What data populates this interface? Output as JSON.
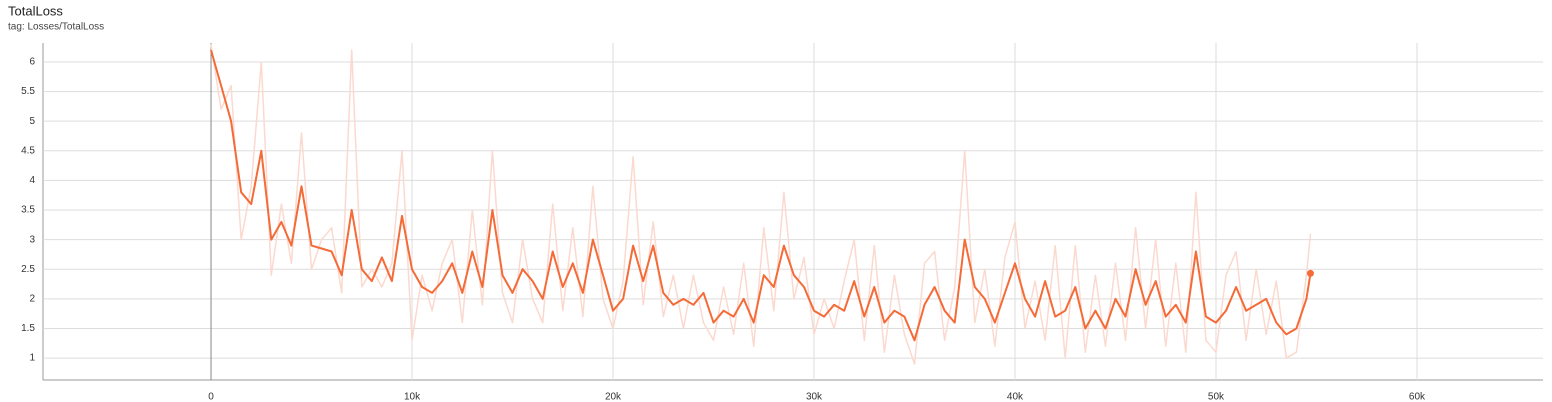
{
  "chart_data": {
    "type": "line",
    "title": "TotalLoss",
    "subtitle": "tag: Losses/TotalLoss",
    "x": [
      0,
      500,
      1000,
      1500,
      2000,
      2500,
      3000,
      3500,
      4000,
      4500,
      5000,
      5500,
      6000,
      6500,
      7000,
      7500,
      8000,
      8500,
      9000,
      9500,
      10000,
      10500,
      11000,
      11500,
      12000,
      12500,
      13000,
      13500,
      14000,
      14500,
      15000,
      15500,
      16000,
      16500,
      17000,
      17500,
      18000,
      18500,
      19000,
      19500,
      20000,
      20500,
      21000,
      21500,
      22000,
      22500,
      23000,
      23500,
      24000,
      24500,
      25000,
      25500,
      26000,
      26500,
      27000,
      27500,
      28000,
      28500,
      29000,
      29500,
      30000,
      30500,
      31000,
      31500,
      32000,
      32500,
      33000,
      33500,
      34000,
      34500,
      35000,
      35500,
      36000,
      36500,
      37000,
      37500,
      38000,
      38500,
      39000,
      39500,
      40000,
      40500,
      41000,
      41500,
      42000,
      42500,
      43000,
      43500,
      44000,
      44500,
      45000,
      45500,
      46000,
      46500,
      47000,
      47500,
      48000,
      48500,
      49000,
      49500,
      50000,
      50500,
      51000,
      51500,
      52000,
      52500,
      53000,
      53500,
      54000,
      54500,
      54700
    ],
    "series": [
      {
        "color": "#fbd9cf",
        "width": 1.5,
        "values": [
          6.3,
          5.2,
          5.6,
          3.0,
          3.9,
          6.0,
          2.4,
          3.6,
          2.6,
          4.8,
          2.5,
          3.0,
          3.2,
          2.1,
          6.2,
          2.2,
          2.5,
          2.2,
          2.6,
          4.5,
          1.3,
          2.4,
          1.8,
          2.6,
          3.0,
          1.6,
          3.5,
          1.9,
          4.5,
          2.1,
          1.6,
          3.0,
          2.0,
          1.6,
          3.6,
          1.8,
          3.2,
          1.7,
          3.9,
          2.0,
          1.5,
          2.3,
          4.4,
          1.9,
          3.3,
          1.7,
          2.4,
          1.5,
          2.4,
          1.6,
          1.3,
          2.2,
          1.4,
          2.6,
          1.2,
          3.2,
          1.8,
          3.8,
          2.0,
          2.7,
          1.4,
          2.0,
          1.5,
          2.3,
          3.0,
          1.3,
          2.9,
          1.1,
          2.4,
          1.4,
          0.9,
          2.6,
          2.8,
          1.3,
          2.2,
          4.5,
          1.6,
          2.5,
          1.2,
          2.7,
          3.3,
          1.5,
          2.3,
          1.3,
          2.9,
          1.0,
          2.9,
          1.1,
          2.4,
          1.2,
          2.6,
          1.3,
          3.2,
          1.5,
          3.0,
          1.2,
          2.6,
          1.1,
          3.8,
          1.3,
          1.1,
          2.4,
          2.8,
          1.3,
          2.5,
          1.4,
          2.3,
          1.0,
          1.1,
          2.4,
          3.1
        ]
      },
      {
        "color": "#f46b38",
        "width": 2,
        "values": [
          6.2,
          5.6,
          5.0,
          3.8,
          3.6,
          4.5,
          3.0,
          3.3,
          2.9,
          3.9,
          2.9,
          2.85,
          2.8,
          2.4,
          3.5,
          2.5,
          2.3,
          2.7,
          2.3,
          3.4,
          2.5,
          2.2,
          2.1,
          2.3,
          2.6,
          2.1,
          2.8,
          2.2,
          3.5,
          2.4,
          2.1,
          2.5,
          2.3,
          2.0,
          2.8,
          2.2,
          2.6,
          2.1,
          3.0,
          2.4,
          1.8,
          2.0,
          2.9,
          2.3,
          2.9,
          2.1,
          1.9,
          2.0,
          1.9,
          2.1,
          1.6,
          1.8,
          1.7,
          2.0,
          1.6,
          2.4,
          2.2,
          2.9,
          2.4,
          2.2,
          1.8,
          1.7,
          1.9,
          1.8,
          2.3,
          1.7,
          2.2,
          1.6,
          1.8,
          1.7,
          1.3,
          1.9,
          2.2,
          1.8,
          1.6,
          3.0,
          2.2,
          2.0,
          1.6,
          2.1,
          2.6,
          2.0,
          1.7,
          2.3,
          1.7,
          1.8,
          2.2,
          1.5,
          1.8,
          1.5,
          2.0,
          1.7,
          2.5,
          1.9,
          2.3,
          1.7,
          1.9,
          1.6,
          2.8,
          1.7,
          1.6,
          1.8,
          2.2,
          1.8,
          1.9,
          2.0,
          1.6,
          1.4,
          1.5,
          2.0,
          2.43
        ]
      }
    ],
    "xlim": [
      -8360,
      66270
    ],
    "ylim": [
      0.63,
      6.32
    ],
    "xticks": [
      0,
      {
        "value": 10000,
        "label": "10k"
      },
      {
        "value": 20000,
        "label": "20k"
      },
      {
        "value": 30000,
        "label": "30k"
      },
      {
        "value": 40000,
        "label": "40k"
      },
      {
        "value": 50000,
        "label": "50k"
      },
      {
        "value": 60000,
        "label": "60k"
      }
    ],
    "yticks": [
      1,
      1.5,
      2,
      2.5,
      3,
      3.5,
      4,
      4.5,
      5,
      5.5,
      6
    ],
    "grid": true
  }
}
